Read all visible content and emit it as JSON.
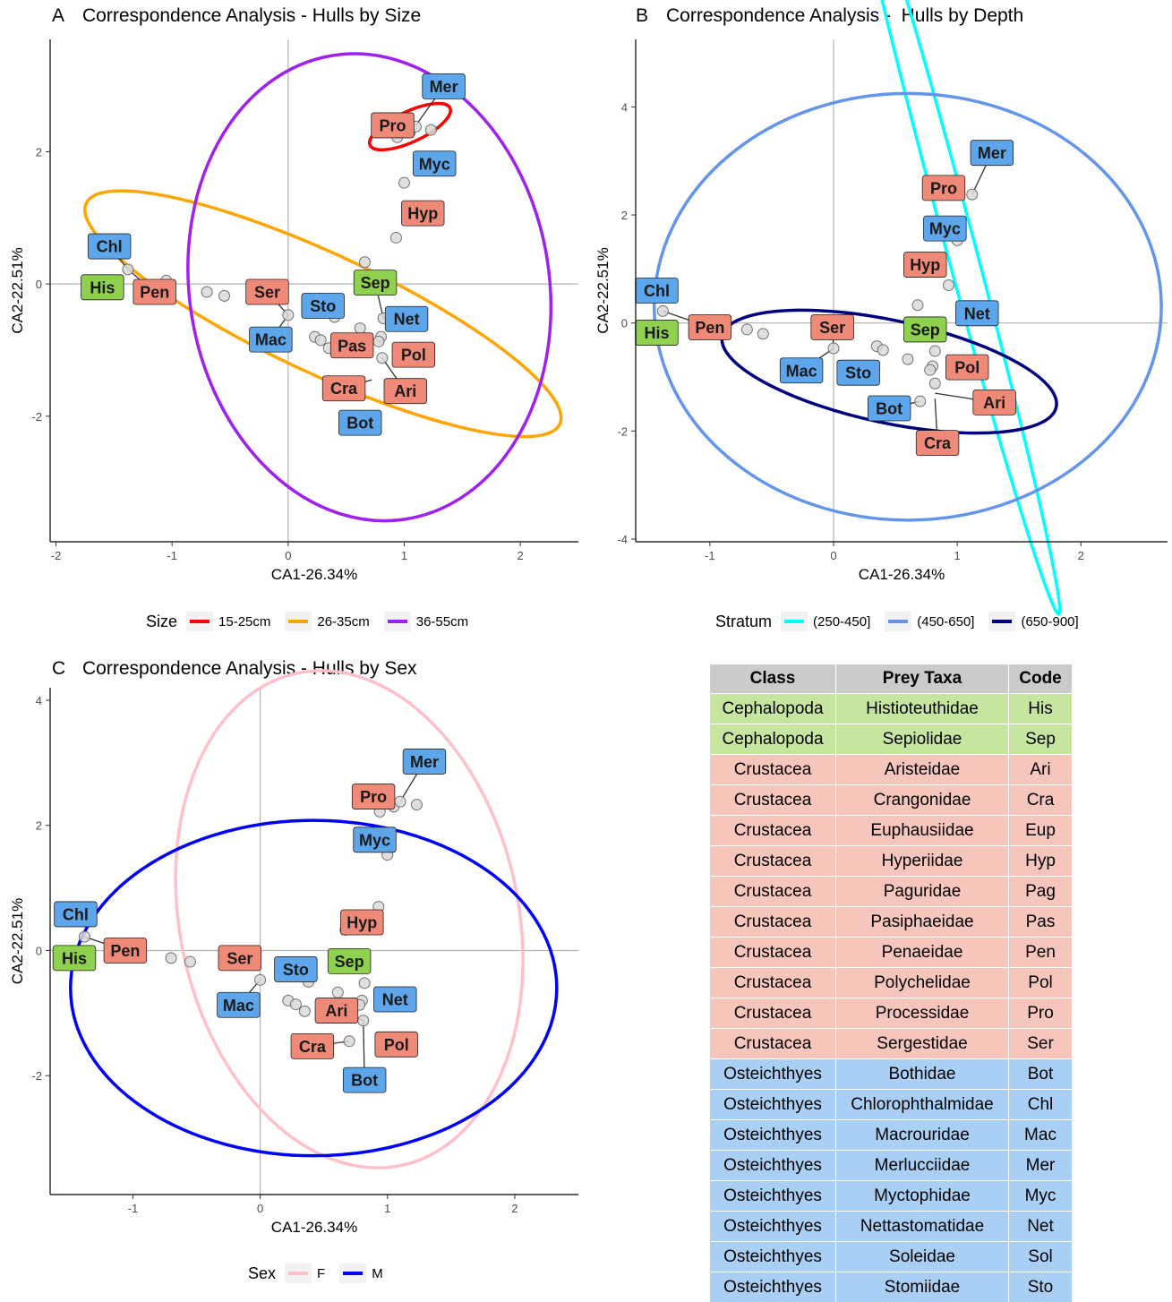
{
  "colors": {
    "Cephalopoda": "#8fd14f",
    "Crustacea": "#f08a78",
    "Osteichthyes": "#5da6ec",
    "point_fill": "#d9d9d9",
    "axis_zero": "#b3b3b3"
  },
  "chart_data": [
    {
      "type": "scatter",
      "panel": "A",
      "title": "Correspondence Analysis - Hulls by Size",
      "xlabel": "CA1-26.34%",
      "ylabel": "CA2-22.51%",
      "xlim": [
        -2.05,
        2.5
      ],
      "ylim": [
        -3.9,
        3.7
      ],
      "xticks": [
        -2,
        -1,
        0,
        1,
        2
      ],
      "yticks": [
        -2,
        0,
        2
      ],
      "grid": false,
      "legend_position": "bottom",
      "legend_title": "Size",
      "hulls": [
        {
          "name": "15-25cm",
          "color": "#ff0000",
          "cx": 1.05,
          "cy": 2.38,
          "rx": 0.38,
          "ry": 0.23,
          "angle": 25
        },
        {
          "name": "26-35cm",
          "color": "#ffa500",
          "cx": 0.3,
          "cy": -0.45,
          "rx": 2.25,
          "ry": 0.9,
          "angle": -25
        },
        {
          "name": "36-55cm",
          "color": "#a020f0",
          "cx": 0.7,
          "cy": -0.05,
          "rx": 1.55,
          "ry": 3.55,
          "angle": 9
        }
      ],
      "points": [
        {
          "x": -1.38,
          "y": 0.22
        },
        {
          "x": -1.05,
          "y": 0.05
        },
        {
          "x": -0.7,
          "y": -0.12
        },
        {
          "x": -0.55,
          "y": -0.18
        },
        {
          "x": 0.0,
          "y": -0.47
        },
        {
          "x": 0.22,
          "y": -0.4
        },
        {
          "x": 0.4,
          "y": -0.5
        },
        {
          "x": 0.23,
          "y": -0.8
        },
        {
          "x": 0.28,
          "y": -0.85
        },
        {
          "x": 0.35,
          "y": -0.97
        },
        {
          "x": 0.62,
          "y": -0.67
        },
        {
          "x": 0.66,
          "y": 0.33
        },
        {
          "x": 0.8,
          "y": -0.8
        },
        {
          "x": 0.78,
          "y": -0.87
        },
        {
          "x": 0.81,
          "y": -1.12
        },
        {
          "x": 0.82,
          "y": -0.52
        },
        {
          "x": 0.93,
          "y": 0.7
        },
        {
          "x": 1.0,
          "y": 1.53
        },
        {
          "x": 1.0,
          "y": 2.42
        },
        {
          "x": 0.94,
          "y": 2.22
        },
        {
          "x": 1.05,
          "y": 2.3
        },
        {
          "x": 1.1,
          "y": 2.38
        },
        {
          "x": 1.23,
          "y": 2.33
        }
      ],
      "labels": [
        {
          "code": "Chl",
          "class": "Osteichthyes",
          "x": -1.54,
          "y": 0.57,
          "px": -1.38,
          "py": 0.22
        },
        {
          "code": "His",
          "class": "Cephalopoda",
          "x": -1.6,
          "y": -0.05
        },
        {
          "code": "Pen",
          "class": "Crustacea",
          "x": -1.15,
          "y": -0.12,
          "px": -1.38,
          "py": 0.22
        },
        {
          "code": "Ser",
          "class": "Crustacea",
          "x": -0.18,
          "y": -0.12,
          "px": 0.0,
          "py": -0.47
        },
        {
          "code": "Mac",
          "class": "Osteichthyes",
          "x": -0.15,
          "y": -0.84,
          "px": 0.0,
          "py": -0.47
        },
        {
          "code": "Sto",
          "class": "Osteichthyes",
          "x": 0.3,
          "y": -0.33
        },
        {
          "code": "Pas",
          "class": "Crustacea",
          "x": 0.55,
          "y": -0.93
        },
        {
          "code": "Sep",
          "class": "Cephalopoda",
          "x": 0.75,
          "y": 0.02,
          "px": 0.82,
          "py": -0.52
        },
        {
          "code": "Net",
          "class": "Osteichthyes",
          "x": 1.02,
          "y": -0.53,
          "px": 0.82,
          "py": -0.52
        },
        {
          "code": "Pol",
          "class": "Crustacea",
          "x": 1.08,
          "y": -1.07
        },
        {
          "code": "Ari",
          "class": "Crustacea",
          "x": 1.01,
          "y": -1.62,
          "px": 0.81,
          "py": -1.12
        },
        {
          "code": "Cra",
          "class": "Crustacea",
          "x": 0.48,
          "y": -1.58,
          "px": 0.72,
          "py": -1.45
        },
        {
          "code": "Bot",
          "class": "Osteichthyes",
          "x": 0.62,
          "y": -2.1
        },
        {
          "code": "Hyp",
          "class": "Crustacea",
          "x": 1.16,
          "y": 1.07
        },
        {
          "code": "Myc",
          "class": "Osteichthyes",
          "x": 1.26,
          "y": 1.82
        },
        {
          "code": "Pro",
          "class": "Crustacea",
          "x": 0.9,
          "y": 2.4
        },
        {
          "code": "Mer",
          "class": "Osteichthyes",
          "x": 1.34,
          "y": 2.99,
          "px": 1.1,
          "py": 2.4
        }
      ]
    },
    {
      "type": "scatter",
      "panel": "B",
      "title": "Correspondence Analysis -  Hulls by Depth",
      "xlabel": "CA1-26.34%",
      "ylabel": "CA2-22.51%",
      "xlim": [
        -1.6,
        2.7
      ],
      "ylim": [
        -4.05,
        5.25
      ],
      "xticks": [
        -1,
        0,
        1,
        2
      ],
      "yticks": [
        -4,
        -2,
        0,
        2,
        4
      ],
      "grid": false,
      "legend_position": "bottom",
      "legend_title": "Stratum",
      "hulls": [
        {
          "name": "(250-450]",
          "color": "#00ffff",
          "cx": 0.98,
          "cy": 1.8,
          "rx": 3.25,
          "ry": 0.27,
          "angle": -75
        },
        {
          "name": "(450-650]",
          "color": "#6495ed",
          "cx": 0.6,
          "cy": 0.3,
          "rx": 2.05,
          "ry": 3.95,
          "angle": 0
        },
        {
          "name": "(650-900]",
          "color": "#000080",
          "cx": 0.45,
          "cy": -0.9,
          "rx": 1.38,
          "ry": 0.95,
          "angle": -12
        }
      ],
      "points": [
        {
          "x": -1.38,
          "y": 0.22
        },
        {
          "x": -1.05,
          "y": 0.05
        },
        {
          "x": -0.7,
          "y": -0.12
        },
        {
          "x": -0.57,
          "y": -0.2
        },
        {
          "x": 0.0,
          "y": -0.47
        },
        {
          "x": 0.35,
          "y": -0.43
        },
        {
          "x": 0.4,
          "y": -0.5
        },
        {
          "x": 0.25,
          "y": -0.8
        },
        {
          "x": 0.33,
          "y": -0.85
        },
        {
          "x": 0.6,
          "y": -0.67
        },
        {
          "x": 0.68,
          "y": 0.33
        },
        {
          "x": 0.8,
          "y": -0.8
        },
        {
          "x": 0.78,
          "y": -0.87
        },
        {
          "x": 0.82,
          "y": -1.12
        },
        {
          "x": 0.82,
          "y": -0.52
        },
        {
          "x": 0.93,
          "y": 0.7
        },
        {
          "x": 1.0,
          "y": 1.53
        },
        {
          "x": 1.12,
          "y": 2.38
        },
        {
          "x": 0.7,
          "y": -1.45
        }
      ],
      "labels": [
        {
          "code": "Chl",
          "class": "Osteichthyes",
          "x": -1.43,
          "y": 0.6
        },
        {
          "code": "His",
          "class": "Cephalopoda",
          "x": -1.43,
          "y": -0.18
        },
        {
          "code": "Pen",
          "class": "Crustacea",
          "x": -1.0,
          "y": -0.08,
          "px": -1.38,
          "py": 0.22
        },
        {
          "code": "Ser",
          "class": "Crustacea",
          "x": -0.01,
          "y": -0.08,
          "px": 0.0,
          "py": -0.47
        },
        {
          "code": "Mac",
          "class": "Osteichthyes",
          "x": -0.26,
          "y": -0.88,
          "px": 0.0,
          "py": -0.47
        },
        {
          "code": "Sto",
          "class": "Osteichthyes",
          "x": 0.2,
          "y": -0.92
        },
        {
          "code": "Sep",
          "class": "Cephalopoda",
          "x": 0.74,
          "y": -0.12
        },
        {
          "code": "Net",
          "class": "Osteichthyes",
          "x": 1.16,
          "y": 0.18
        },
        {
          "code": "Pol",
          "class": "Crustacea",
          "x": 1.08,
          "y": -0.82
        },
        {
          "code": "Ari",
          "class": "Crustacea",
          "x": 1.3,
          "y": -1.47,
          "px": 0.82,
          "py": -1.3
        },
        {
          "code": "Bot",
          "class": "Osteichthyes",
          "x": 0.45,
          "y": -1.58,
          "px": 0.7,
          "py": -1.45
        },
        {
          "code": "Cra",
          "class": "Crustacea",
          "x": 0.84,
          "y": -2.22,
          "px": 0.82,
          "py": -1.4
        },
        {
          "code": "Hyp",
          "class": "Crustacea",
          "x": 0.74,
          "y": 1.08
        },
        {
          "code": "Myc",
          "class": "Osteichthyes",
          "x": 0.9,
          "y": 1.75
        },
        {
          "code": "Pro",
          "class": "Crustacea",
          "x": 0.89,
          "y": 2.5
        },
        {
          "code": "Mer",
          "class": "Osteichthyes",
          "x": 1.28,
          "y": 3.15,
          "px": 1.12,
          "py": 2.38
        }
      ]
    },
    {
      "type": "scatter",
      "panel": "C",
      "title": "Correspondence Analysis - Hulls by Sex",
      "xlabel": "CA1-26.34%",
      "ylabel": "CA2-22.51%",
      "xlim": [
        -1.65,
        2.5
      ],
      "ylim": [
        -3.9,
        4.2
      ],
      "xticks": [
        -1,
        0,
        1,
        2
      ],
      "yticks": [
        -2,
        0,
        2,
        4
      ],
      "grid": false,
      "legend_position": "bottom",
      "legend_title": "Sex",
      "hulls": [
        {
          "name": "F",
          "color": "#ffc0cb",
          "cx": 0.7,
          "cy": 0.5,
          "rx": 1.33,
          "ry": 4.02,
          "angle": 12
        },
        {
          "name": "M",
          "color": "#0000ff",
          "cx": 0.42,
          "cy": -0.6,
          "rx": 1.91,
          "ry": 2.68,
          "angle": 0
        }
      ],
      "points": [
        {
          "x": -1.38,
          "y": 0.22
        },
        {
          "x": -1.05,
          "y": 0.05
        },
        {
          "x": -0.7,
          "y": -0.12
        },
        {
          "x": -0.55,
          "y": -0.18
        },
        {
          "x": 0.0,
          "y": -0.47
        },
        {
          "x": 0.38,
          "y": -0.5
        },
        {
          "x": 0.22,
          "y": -0.8
        },
        {
          "x": 0.28,
          "y": -0.86
        },
        {
          "x": 0.35,
          "y": -0.97
        },
        {
          "x": 0.61,
          "y": -0.67
        },
        {
          "x": 0.67,
          "y": 0.33
        },
        {
          "x": 0.8,
          "y": -0.8
        },
        {
          "x": 0.78,
          "y": -0.87
        },
        {
          "x": 0.81,
          "y": -1.12
        },
        {
          "x": 0.82,
          "y": -0.52
        },
        {
          "x": 0.93,
          "y": 0.7
        },
        {
          "x": 1.0,
          "y": 1.53
        },
        {
          "x": 0.94,
          "y": 2.22
        },
        {
          "x": 1.05,
          "y": 2.3
        },
        {
          "x": 1.1,
          "y": 2.38
        },
        {
          "x": 1.23,
          "y": 2.33
        },
        {
          "x": 0.7,
          "y": -1.45
        }
      ],
      "labels": [
        {
          "code": "Chl",
          "class": "Osteichthyes",
          "x": -1.45,
          "y": 0.58
        },
        {
          "code": "His",
          "class": "Cephalopoda",
          "x": -1.46,
          "y": -0.12
        },
        {
          "code": "Pen",
          "class": "Crustacea",
          "x": -1.06,
          "y": 0.0,
          "px": -1.38,
          "py": 0.22
        },
        {
          "code": "Ser",
          "class": "Crustacea",
          "x": -0.16,
          "y": -0.12
        },
        {
          "code": "Mac",
          "class": "Osteichthyes",
          "x": -0.17,
          "y": -0.87,
          "px": 0.0,
          "py": -0.47
        },
        {
          "code": "Sto",
          "class": "Osteichthyes",
          "x": 0.28,
          "y": -0.3
        },
        {
          "code": "Sep",
          "class": "Cephalopoda",
          "x": 0.7,
          "y": -0.17
        },
        {
          "code": "Hyp",
          "class": "Crustacea",
          "x": 0.8,
          "y": 0.45,
          "px": 0.67,
          "py": 0.33
        },
        {
          "code": "Net",
          "class": "Osteichthyes",
          "x": 1.06,
          "y": -0.78
        },
        {
          "code": "Ari",
          "class": "Crustacea",
          "x": 0.6,
          "y": -0.96,
          "px": 0.81,
          "py": -1.12
        },
        {
          "code": "Pol",
          "class": "Crustacea",
          "x": 1.07,
          "y": -1.5
        },
        {
          "code": "Cra",
          "class": "Crustacea",
          "x": 0.41,
          "y": -1.53,
          "px": 0.7,
          "py": -1.45
        },
        {
          "code": "Bot",
          "class": "Osteichthyes",
          "x": 0.82,
          "y": -2.07,
          "px": 0.81,
          "py": -1.12
        },
        {
          "code": "Myc",
          "class": "Osteichthyes",
          "x": 0.9,
          "y": 1.77
        },
        {
          "code": "Pro",
          "class": "Crustacea",
          "x": 0.89,
          "y": 2.46
        },
        {
          "code": "Mer",
          "class": "Osteichthyes",
          "x": 1.29,
          "y": 3.02,
          "px": 1.1,
          "py": 2.38
        }
      ]
    },
    {
      "type": "table",
      "columns": [
        "Class",
        "Prey Taxa",
        "Code"
      ],
      "rows": [
        [
          "Cephalopoda",
          "Histioteuthidae",
          "His"
        ],
        [
          "Cephalopoda",
          "Sepiolidae",
          "Sep"
        ],
        [
          "Crustacea",
          "Aristeidae",
          "Ari"
        ],
        [
          "Crustacea",
          "Crangonidae",
          "Cra"
        ],
        [
          "Crustacea",
          "Euphausiidae",
          "Eup"
        ],
        [
          "Crustacea",
          "Hyperiidae",
          "Hyp"
        ],
        [
          "Crustacea",
          "Paguridae",
          "Pag"
        ],
        [
          "Crustacea",
          "Pasiphaeidae",
          "Pas"
        ],
        [
          "Crustacea",
          "Penaeidae",
          "Pen"
        ],
        [
          "Crustacea",
          "Polychelidae",
          "Pol"
        ],
        [
          "Crustacea",
          "Processidae",
          "Pro"
        ],
        [
          "Crustacea",
          "Sergestidae",
          "Ser"
        ],
        [
          "Osteichthyes",
          "Bothidae",
          "Bot"
        ],
        [
          "Osteichthyes",
          "Chlorophthalmidae",
          "Chl"
        ],
        [
          "Osteichthyes",
          "Macrouridae",
          "Mac"
        ],
        [
          "Osteichthyes",
          "Merlucciidae",
          "Mer"
        ],
        [
          "Osteichthyes",
          "Myctophidae",
          "Myc"
        ],
        [
          "Osteichthyes",
          "Nettastomatidae",
          "Net"
        ],
        [
          "Osteichthyes",
          "Soleidae",
          "Sol"
        ],
        [
          "Osteichthyes",
          "Stomiidae",
          "Sto"
        ]
      ],
      "row_colors": {
        "Cephalopoda": "#c6e6a0",
        "Crustacea": "#f6c6bc",
        "Osteichthyes": "#a9cff4"
      }
    }
  ]
}
